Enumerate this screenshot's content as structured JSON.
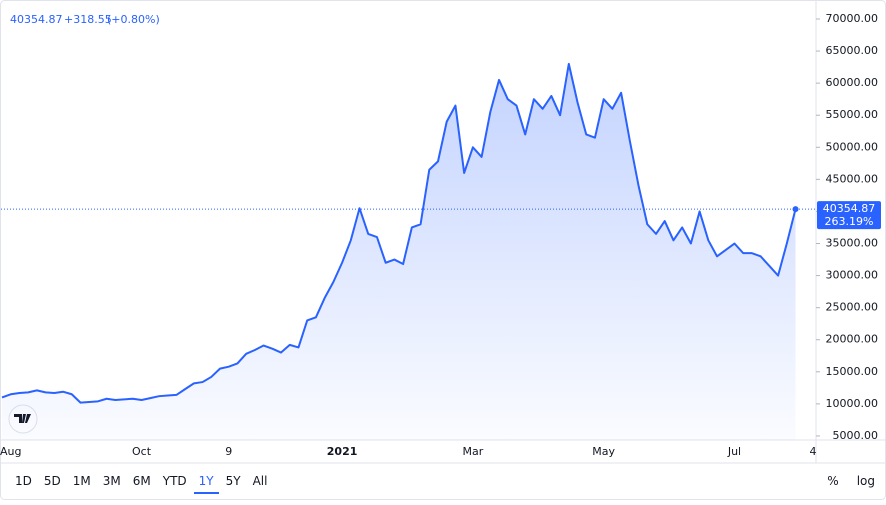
{
  "chart_data": {
    "type": "area",
    "header": {
      "price": "40354.87",
      "change": "+318.55",
      "change_pct": "(+0.80%)"
    },
    "last_change_label": "263.19%",
    "color": "#2962ff",
    "categories": [
      null,
      "Aug",
      null,
      null,
      null,
      null,
      null,
      null,
      null,
      null,
      null,
      null,
      null,
      null,
      null,
      null,
      "Oct",
      null,
      null,
      null,
      null,
      null,
      null,
      null,
      null,
      null,
      "9",
      null,
      null,
      null,
      null,
      null,
      null,
      null,
      null,
      null,
      null,
      null,
      null,
      "2021",
      null,
      null,
      null,
      null,
      null,
      null,
      null,
      null,
      null,
      null,
      null,
      null,
      null,
      null,
      "Mar",
      null,
      null,
      null,
      null,
      null,
      null,
      null,
      null,
      null,
      null,
      null,
      null,
      null,
      null,
      "May",
      null,
      null,
      null,
      null,
      null,
      null,
      null,
      null,
      null,
      null,
      null,
      null,
      null,
      null,
      "Jul",
      null,
      null,
      null,
      null,
      null,
      null,
      null,
      null,
      "4"
    ],
    "values": [
      11000,
      11500,
      11700,
      11800,
      12100,
      11800,
      11700,
      11900,
      11500,
      10200,
      10300,
      10400,
      10800,
      10600,
      10700,
      10800,
      10600,
      10900,
      11200,
      11300,
      11400,
      12300,
      13200,
      13400,
      14200,
      15500,
      15800,
      16300,
      17800,
      18400,
      19100,
      18600,
      18000,
      19200,
      18800,
      23000,
      23500,
      26500,
      29000,
      32000,
      35500,
      40500,
      36500,
      36000,
      32000,
      32500,
      31800,
      37500,
      38000,
      46500,
      47800,
      54000,
      56500,
      46000,
      50000,
      48500,
      55500,
      60500,
      57500,
      56500,
      52000,
      57500,
      56000,
      58000,
      55000,
      63000,
      57000,
      52000,
      51500,
      57500,
      56000,
      58500,
      51000,
      44000,
      38000,
      36500,
      38500,
      35500,
      37500,
      35000,
      40000,
      35500,
      33000,
      34000,
      35000,
      33500,
      33500,
      33000,
      31500,
      30000,
      35000,
      40354.87,
      null,
      null
    ],
    "ylim": [
      4370,
      72180
    ],
    "yticks": [
      {
        "value": 5000,
        "label": "5000.00"
      },
      {
        "value": 10000,
        "label": "10000.00"
      },
      {
        "value": 15000,
        "label": "15000.00"
      },
      {
        "value": 20000,
        "label": "20000.00"
      },
      {
        "value": 25000,
        "label": "25000.00"
      },
      {
        "value": 30000,
        "label": "30000.00"
      },
      {
        "value": 35000,
        "label": "35000.00"
      },
      {
        "value": 40000,
        "label": "40000.00"
      },
      {
        "value": 45000,
        "label": "45000.00"
      },
      {
        "value": 50000,
        "label": "50000.00"
      },
      {
        "value": 55000,
        "label": "55000.00"
      },
      {
        "value": 60000,
        "label": "60000.00"
      },
      {
        "value": 65000,
        "label": "65000.00"
      },
      {
        "value": 70000,
        "label": "70000.00"
      }
    ],
    "grid": false,
    "toolbar": {
      "ranges": [
        "1D",
        "5D",
        "1M",
        "3M",
        "6M",
        "YTD",
        "1Y",
        "5Y",
        "All"
      ],
      "selected": 6,
      "right": [
        "%",
        "log"
      ]
    }
  }
}
